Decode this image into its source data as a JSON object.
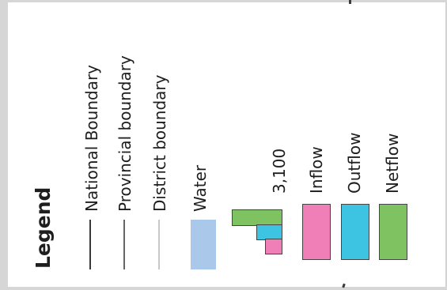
{
  "legend": {
    "title": "Legend",
    "boundaries": [
      {
        "label": "National Boundary",
        "color": "#3a3a3a"
      },
      {
        "label": "Provincial boundary",
        "color": "#666666"
      },
      {
        "label": "District boundary",
        "color": "#c8c8c8"
      }
    ],
    "water": {
      "label": "Water",
      "color": "#a9c8ea"
    },
    "flow_scale": {
      "label": "3,100"
    },
    "flows": [
      {
        "label": "Inflow",
        "color": "#f07fb8"
      },
      {
        "label": "Outflow",
        "color": "#3ec4e3"
      },
      {
        "label": "Netflow",
        "color": "#7ec262"
      }
    ]
  }
}
